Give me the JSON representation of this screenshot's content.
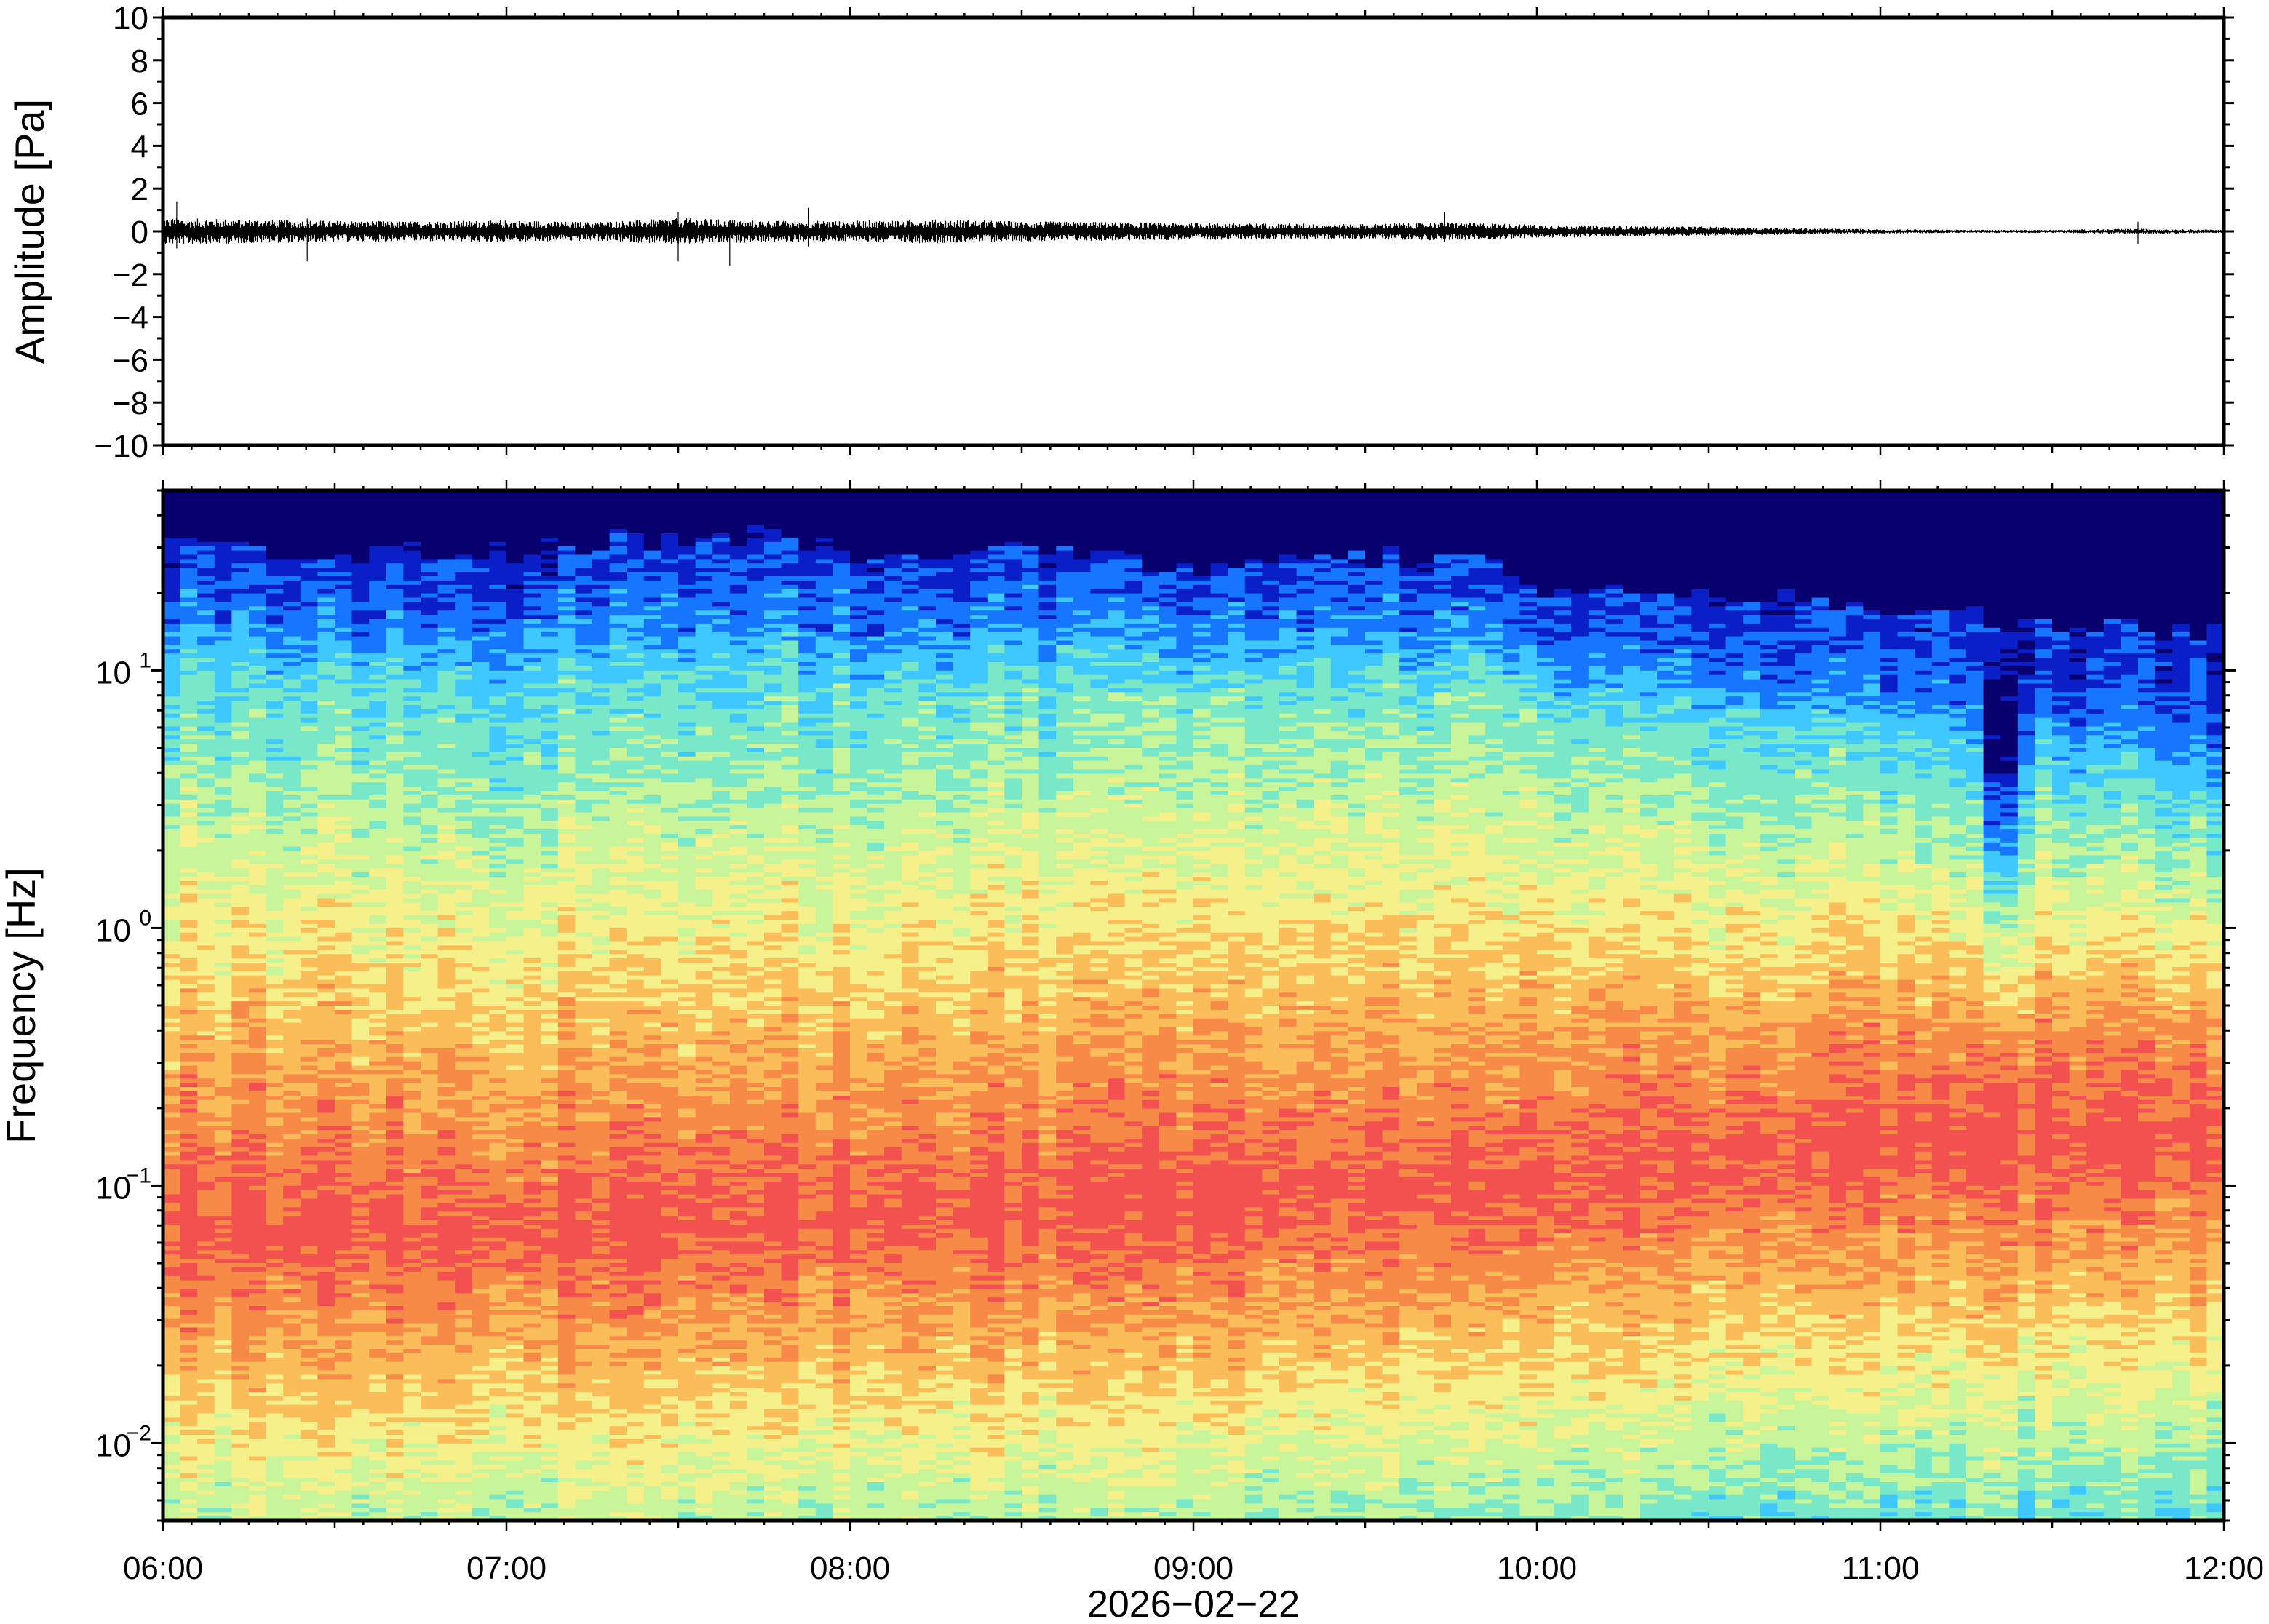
{
  "chart_data": [
    {
      "type": "line",
      "ylabel": "Amplitude [Pa]",
      "ylim": [
        -10,
        10
      ],
      "yticks": [
        {
          "value": 10,
          "label": "10"
        },
        {
          "value": 8,
          "label": "8"
        },
        {
          "value": 6,
          "label": "6"
        },
        {
          "value": 4,
          "label": "4"
        },
        {
          "value": 2,
          "label": "2"
        },
        {
          "value": 0,
          "label": "0"
        },
        {
          "value": -2,
          "label": "−2"
        },
        {
          "value": -4,
          "label": "−4"
        },
        {
          "value": -6,
          "label": "−6"
        },
        {
          "value": -8,
          "label": "−8"
        },
        {
          "value": -10,
          "label": "−10"
        }
      ],
      "grid": false,
      "line_color": "#000000",
      "envelope": {
        "x_hours": [
          6.0,
          6.25,
          6.5,
          6.75,
          7.0,
          7.25,
          7.5,
          7.75,
          8.0,
          8.25,
          8.5,
          8.75,
          9.0,
          9.25,
          9.5,
          9.75,
          10.0,
          10.25,
          10.5,
          10.75,
          11.0,
          11.25,
          11.5,
          11.75,
          12.0
        ],
        "amplitude_pa": [
          0.5,
          0.45,
          0.4,
          0.38,
          0.42,
          0.35,
          0.5,
          0.4,
          0.4,
          0.45,
          0.38,
          0.35,
          0.32,
          0.3,
          0.28,
          0.35,
          0.25,
          0.2,
          0.18,
          0.12,
          0.08,
          0.06,
          0.06,
          0.1,
          0.06
        ]
      },
      "spikes": [
        {
          "x_hours": 6.04,
          "max": 1.4,
          "min": -0.8
        },
        {
          "x_hours": 6.42,
          "max": 0.6,
          "min": -1.4
        },
        {
          "x_hours": 7.5,
          "max": 0.9,
          "min": -1.4
        },
        {
          "x_hours": 7.65,
          "max": 0.5,
          "min": -1.6
        },
        {
          "x_hours": 7.88,
          "max": 1.1,
          "min": -0.7
        },
        {
          "x_hours": 9.73,
          "max": 0.9,
          "min": -0.5
        },
        {
          "x_hours": 11.75,
          "max": 0.45,
          "min": -0.6
        }
      ]
    },
    {
      "type": "heatmap",
      "ylabel": "Frequency [Hz]",
      "xlabel": "2026−02−22",
      "yscale": "log",
      "ylim": [
        0.005,
        50
      ],
      "yticks": [
        {
          "value": 10,
          "base": "10",
          "exp": "1"
        },
        {
          "value": 1,
          "base": "10",
          "exp": "0"
        },
        {
          "value": 0.1,
          "base": "10",
          "exp": "−1"
        },
        {
          "value": 0.01,
          "base": "10",
          "exp": "−2"
        }
      ],
      "xlim_hours": [
        6,
        12
      ],
      "xticks": [
        {
          "value": 6,
          "label": "06:00"
        },
        {
          "value": 7,
          "label": "07:00"
        },
        {
          "value": 8,
          "label": "08:00"
        },
        {
          "value": 9,
          "label": "09:00"
        },
        {
          "value": 10,
          "label": "10:00"
        },
        {
          "value": 11,
          "label": "11:00"
        },
        {
          "value": 12,
          "label": "12:00"
        }
      ],
      "colormap": [
        "#08006e",
        "#0a1fc8",
        "#1776ff",
        "#3ec8ff",
        "#78e8c8",
        "#c8f59a",
        "#f5f08a",
        "#fbbd5a",
        "#f88a48",
        "#f35050"
      ],
      "cutoff_hz": {
        "x_hours": [
          6.0,
          6.5,
          7.0,
          7.5,
          7.75,
          8.0,
          8.5,
          9.0,
          9.5,
          9.75,
          9.85,
          10.0,
          10.5,
          11.0,
          11.5,
          12.0
        ],
        "freq": [
          32,
          28,
          29,
          33,
          34,
          29,
          30,
          25,
          27,
          29,
          26,
          21,
          20,
          17,
          15,
          14
        ]
      },
      "band_center_hz": {
        "x_hours": [
          6.0,
          7.0,
          7.5,
          8.0,
          9.0,
          10.0,
          10.5,
          11.0,
          12.0
        ],
        "freq": [
          0.07,
          0.065,
          0.07,
          0.075,
          0.085,
          0.1,
          0.12,
          0.14,
          0.15
        ]
      },
      "quiet_trough": {
        "x_hours": 11.35,
        "freq_range_hz": [
          0.3,
          10
        ]
      }
    }
  ]
}
